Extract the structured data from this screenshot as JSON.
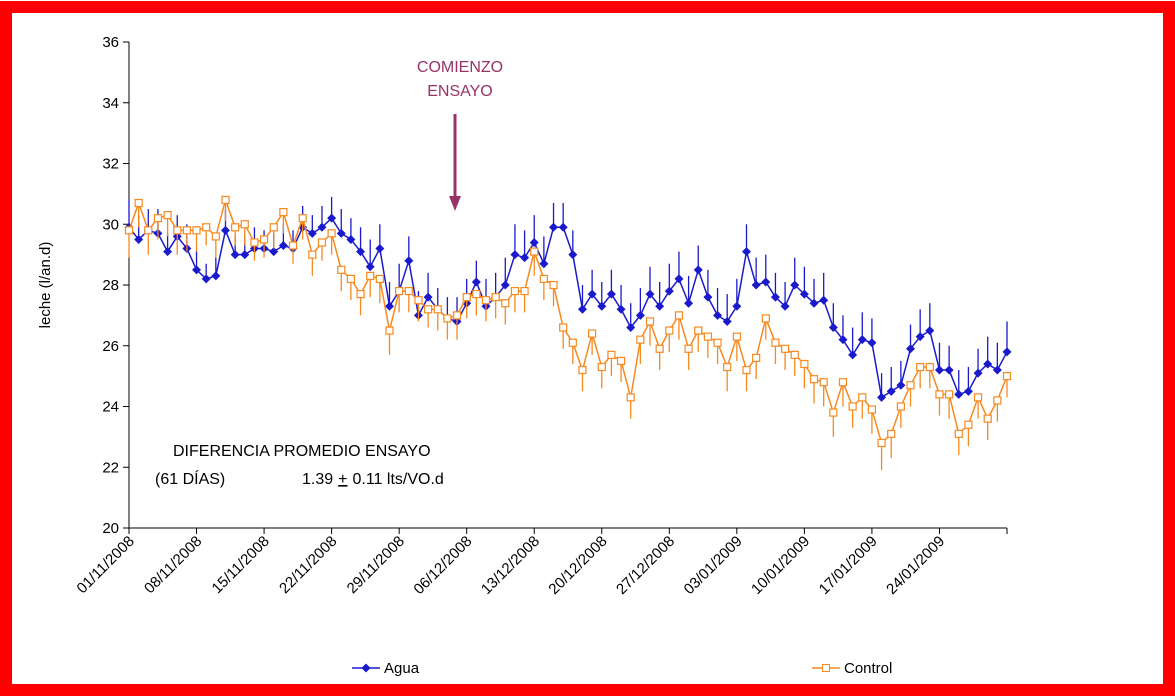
{
  "chart_data": {
    "type": "line",
    "y_label": "leche (l/an.d)",
    "categories": [
      "01/11/2008",
      null,
      null,
      null,
      null,
      null,
      null,
      "08/11/2008",
      null,
      null,
      null,
      null,
      null,
      null,
      "15/11/2008",
      null,
      null,
      null,
      null,
      null,
      null,
      "22/11/2008",
      null,
      null,
      null,
      null,
      null,
      null,
      "29/11/2008",
      null,
      null,
      null,
      null,
      null,
      null,
      "06/12/2008",
      null,
      null,
      null,
      null,
      null,
      null,
      "13/12/2008",
      null,
      null,
      null,
      null,
      null,
      null,
      "20/12/2008",
      null,
      null,
      null,
      null,
      null,
      null,
      "27/12/2008",
      null,
      null,
      null,
      null,
      null,
      null,
      "03/01/2009",
      null,
      null,
      null,
      null,
      null,
      null,
      "10/01/2009",
      null,
      null,
      null,
      null,
      null,
      null,
      "17/01/2009",
      null,
      null,
      null,
      null,
      null,
      null,
      "24/01/2009",
      null,
      null,
      null,
      null,
      null,
      null,
      null
    ],
    "ylim": [
      20,
      36
    ],
    "yticks": [
      20,
      22,
      24,
      26,
      28,
      30,
      32,
      34,
      36
    ],
    "series": [
      {
        "name": "Agua",
        "color": "#1a1acc",
        "marker": "diamond",
        "error_bars": "up",
        "values": [
          29.9,
          29.5,
          29.8,
          29.7,
          29.1,
          29.6,
          29.2,
          28.5,
          28.2,
          28.3,
          29.8,
          29.0,
          29.0,
          29.2,
          29.2,
          29.1,
          29.3,
          29.2,
          29.9,
          29.7,
          29.9,
          30.2,
          29.7,
          29.5,
          29.1,
          28.6,
          29.2,
          27.3,
          27.8,
          28.8,
          27.0,
          27.6,
          27.2,
          26.9,
          26.8,
          27.4,
          28.1,
          27.3,
          27.6,
          28.0,
          29.0,
          28.9,
          29.4,
          28.7,
          29.9,
          29.9,
          29.0,
          27.2,
          27.7,
          27.3,
          27.7,
          27.2,
          26.6,
          27.0,
          27.7,
          27.3,
          27.8,
          28.2,
          27.4,
          28.5,
          27.6,
          27.0,
          26.8,
          27.3,
          29.1,
          28.0,
          28.1,
          27.6,
          27.3,
          28.0,
          27.7,
          27.4,
          27.5,
          26.6,
          26.2,
          25.7,
          26.2,
          26.1,
          24.3,
          24.5,
          24.7,
          25.9,
          26.3,
          26.5,
          25.2,
          25.2,
          24.4,
          24.5,
          25.1,
          25.4,
          25.2,
          25.8
        ],
        "errors": [
          0.9,
          0.8,
          0.7,
          0.8,
          0.6,
          0.7,
          0.8,
          0.6,
          0.5,
          0.6,
          0.7,
          0.6,
          0.6,
          0.7,
          0.6,
          0.6,
          0.7,
          0.6,
          0.7,
          0.6,
          0.7,
          0.7,
          0.8,
          0.7,
          0.8,
          0.9,
          0.8,
          0.8,
          0.9,
          0.8,
          0.8,
          0.8,
          0.7,
          0.7,
          0.8,
          0.8,
          0.7,
          0.9,
          0.8,
          0.9,
          1.0,
          0.9,
          0.9,
          0.9,
          0.8,
          0.8,
          0.8,
          0.8,
          0.8,
          0.8,
          0.8,
          0.8,
          0.8,
          0.9,
          0.9,
          0.8,
          0.9,
          0.9,
          0.9,
          0.8,
          0.9,
          0.9,
          0.9,
          0.9,
          0.9,
          0.9,
          0.9,
          0.8,
          0.8,
          0.9,
          0.9,
          0.8,
          0.9,
          0.8,
          0.8,
          0.9,
          0.9,
          0.8,
          0.8,
          0.8,
          0.8,
          0.8,
          0.9,
          0.9,
          0.9,
          0.8,
          0.8,
          0.8,
          0.8,
          0.9,
          0.9,
          1.0
        ]
      },
      {
        "name": "Control",
        "color": "#f7891f",
        "marker": "square",
        "error_bars": "down",
        "values": [
          29.8,
          30.7,
          29.8,
          30.2,
          30.3,
          29.8,
          29.8,
          29.8,
          29.9,
          29.6,
          30.8,
          29.9,
          30.0,
          29.4,
          29.5,
          29.9,
          30.4,
          29.3,
          30.2,
          29.0,
          29.4,
          29.7,
          28.5,
          28.2,
          27.7,
          28.3,
          28.2,
          26.5,
          27.8,
          27.8,
          27.5,
          27.2,
          27.2,
          26.9,
          27.0,
          27.6,
          27.7,
          27.5,
          27.6,
          27.4,
          27.8,
          27.8,
          29.1,
          28.2,
          28.0,
          26.6,
          26.1,
          25.2,
          26.4,
          25.3,
          25.7,
          25.5,
          24.3,
          26.2,
          26.8,
          25.9,
          26.5,
          27.0,
          25.9,
          26.5,
          26.3,
          26.1,
          25.3,
          26.3,
          25.2,
          25.6,
          26.9,
          26.1,
          25.9,
          25.7,
          25.4,
          24.9,
          24.8,
          23.8,
          24.8,
          24.0,
          24.3,
          23.9,
          22.8,
          23.1,
          24.0,
          24.7,
          25.3,
          25.3,
          24.4,
          24.4,
          23.1,
          23.4,
          24.3,
          23.6,
          24.2,
          25.0
        ],
        "errors": [
          0.9,
          0.8,
          0.8,
          0.7,
          0.7,
          0.8,
          0.7,
          0.7,
          0.6,
          0.7,
          0.7,
          0.6,
          0.7,
          0.6,
          0.6,
          0.7,
          0.7,
          0.6,
          0.7,
          0.7,
          0.6,
          0.7,
          0.7,
          0.7,
          0.7,
          0.7,
          0.8,
          0.8,
          0.7,
          0.7,
          0.7,
          0.6,
          0.7,
          0.7,
          0.8,
          0.7,
          0.7,
          0.7,
          0.7,
          0.7,
          0.7,
          0.7,
          0.8,
          0.7,
          0.7,
          0.7,
          0.7,
          0.7,
          0.7,
          0.7,
          0.7,
          0.7,
          0.7,
          0.8,
          0.8,
          0.7,
          0.7,
          0.8,
          0.7,
          0.7,
          0.7,
          0.7,
          0.8,
          0.8,
          0.7,
          0.7,
          0.7,
          0.7,
          0.7,
          0.7,
          0.8,
          0.8,
          0.8,
          0.8,
          0.8,
          0.7,
          0.7,
          0.8,
          0.9,
          0.8,
          0.7,
          0.7,
          0.7,
          0.7,
          0.7,
          0.8,
          0.7,
          0.7,
          0.7,
          0.7,
          0.7,
          0.7
        ]
      }
    ],
    "annotation": {
      "lines": [
        "COMIENZO",
        "ENSAYO"
      ],
      "color": "#993366"
    },
    "note": {
      "title": "DIFERENCIA PROMEDIO ENSAYO",
      "period": "(61 DÍAS)",
      "value": "1.39",
      "sign": "+",
      "rest": "0.11 lts/VO.d"
    }
  }
}
